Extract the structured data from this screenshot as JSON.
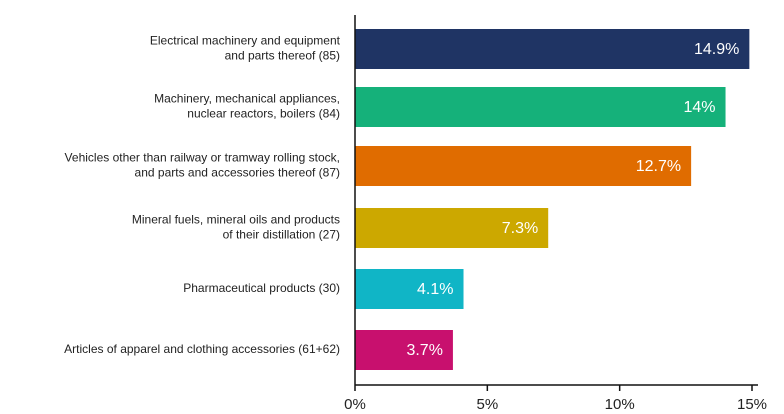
{
  "chart_data": {
    "type": "hbar",
    "categories": [
      [
        "Electrical machinery and equipment",
        "and parts thereof (85)"
      ],
      [
        "Machinery, mechanical appliances,",
        "nuclear reactors, boilers (84)"
      ],
      [
        "Vehicles other than railway or tramway rolling stock,",
        "and parts and accessories thereof (87)"
      ],
      [
        "Mineral fuels, mineral oils and products",
        "of their distillation (27)"
      ],
      [
        "Pharmaceutical products (30)"
      ],
      [
        "Articles of apparel and clothing accessories (61+62)"
      ]
    ],
    "values": [
      14.9,
      14,
      12.7,
      7.3,
      4.1,
      3.7
    ],
    "value_labels": [
      "14.9%",
      "14%",
      "12.7%",
      "7.3%",
      "4.1%",
      "3.7%"
    ],
    "colors": [
      "#1f3464",
      "#15b17a",
      "#e06c00",
      "#cca800",
      "#10b5c6",
      "#c8106e"
    ],
    "xlim": [
      0,
      15
    ],
    "xticks": [
      {
        "value": 0,
        "label": "0%"
      },
      {
        "value": 5,
        "label": "5%"
      },
      {
        "value": 10,
        "label": "10%"
      },
      {
        "value": 15,
        "label": "15%"
      }
    ]
  }
}
